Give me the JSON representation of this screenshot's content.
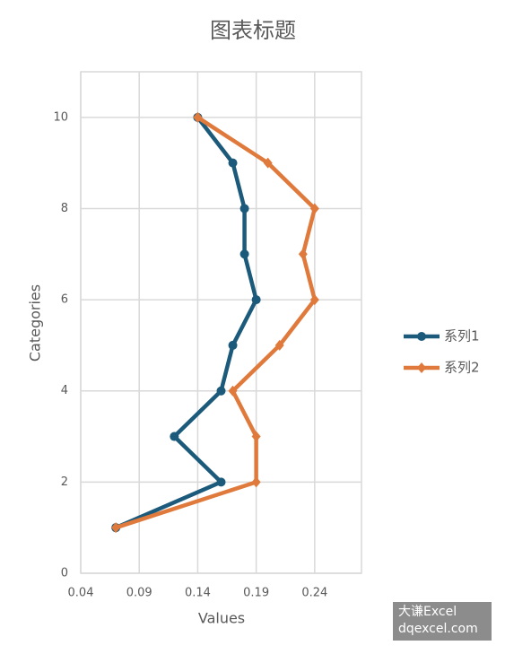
{
  "chart_data": {
    "type": "line",
    "orientation": "horizontal",
    "title": "图表标题",
    "x_label": "Values",
    "y_label": "Categories",
    "categories": [
      1,
      2,
      3,
      4,
      5,
      6,
      7,
      8,
      9,
      10
    ],
    "series": [
      {
        "name": "系列1",
        "color": "#1b5a7a",
        "marker": "circle",
        "values": [
          0.07,
          0.16,
          0.12,
          0.16,
          0.17,
          0.19,
          0.18,
          0.18,
          0.17,
          0.14
        ]
      },
      {
        "name": "系列2",
        "color": "#e07a3c",
        "marker": "diamond",
        "values": [
          0.07,
          0.19,
          0.19,
          0.17,
          0.21,
          0.24,
          0.23,
          0.24,
          0.2,
          0.14
        ]
      }
    ],
    "xlim": [
      0.04,
      0.28
    ],
    "xticks": [
      0.04,
      0.09,
      0.14,
      0.19,
      0.24
    ],
    "ylim": [
      0,
      11
    ],
    "yticks": [
      0,
      2,
      4,
      6,
      8,
      10
    ],
    "grid": true,
    "legend": "right"
  },
  "watermark": [
    "大谦Excel",
    "dqexcel.com"
  ]
}
